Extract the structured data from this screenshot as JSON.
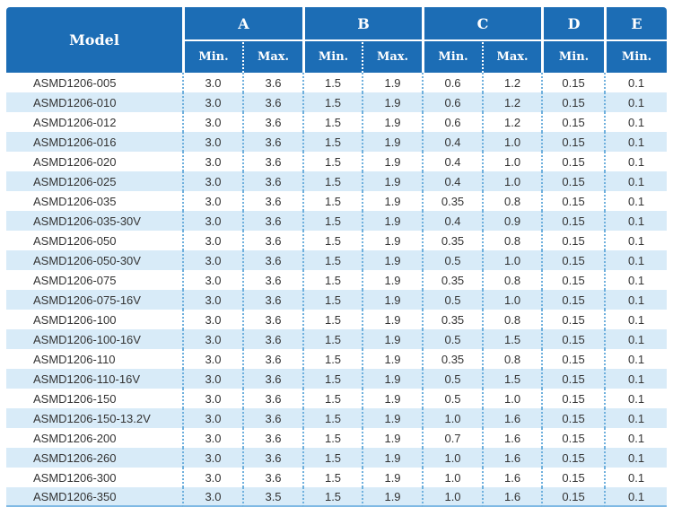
{
  "colors": {
    "header_bg": "#1c6db5",
    "header_text": "#ffffff",
    "row_alt_bg": "#d8ebf8",
    "row_bg": "#ffffff",
    "grid_dotted": "#6fb0dd",
    "bottom_border": "#7fb9e4",
    "body_text": "#333333"
  },
  "chart_data": {
    "type": "table",
    "title": "",
    "header": {
      "model": "Model",
      "groups": [
        {
          "label": "A",
          "span": 2
        },
        {
          "label": "B",
          "span": 2
        },
        {
          "label": "C",
          "span": 2
        },
        {
          "label": "D",
          "span": 1
        },
        {
          "label": "E",
          "span": 1
        }
      ],
      "sub_labels": [
        "Min.",
        "Max.",
        "Min.",
        "Max.",
        "Min.",
        "Max.",
        "Min.",
        "Min."
      ]
    },
    "columns": [
      "Model",
      "A Min.",
      "A Max.",
      "B Min.",
      "B Max.",
      "C Min.",
      "C Max.",
      "D Min.",
      "E Min."
    ],
    "rows": [
      [
        "ASMD1206-005",
        "3.0",
        "3.6",
        "1.5",
        "1.9",
        "0.6",
        "1.2",
        "0.15",
        "0.1"
      ],
      [
        "ASMD1206-010",
        "3.0",
        "3.6",
        "1.5",
        "1.9",
        "0.6",
        "1.2",
        "0.15",
        "0.1"
      ],
      [
        "ASMD1206-012",
        "3.0",
        "3.6",
        "1.5",
        "1.9",
        "0.6",
        "1.2",
        "0.15",
        "0.1"
      ],
      [
        "ASMD1206-016",
        "3.0",
        "3.6",
        "1.5",
        "1.9",
        "0.4",
        "1.0",
        "0.15",
        "0.1"
      ],
      [
        "ASMD1206-020",
        "3.0",
        "3.6",
        "1.5",
        "1.9",
        "0.4",
        "1.0",
        "0.15",
        "0.1"
      ],
      [
        "ASMD1206-025",
        "3.0",
        "3.6",
        "1.5",
        "1.9",
        "0.4",
        "1.0",
        "0.15",
        "0.1"
      ],
      [
        "ASMD1206-035",
        "3.0",
        "3.6",
        "1.5",
        "1.9",
        "0.35",
        "0.8",
        "0.15",
        "0.1"
      ],
      [
        "ASMD1206-035-30V",
        "3.0",
        "3.6",
        "1.5",
        "1.9",
        "0.4",
        "0.9",
        "0.15",
        "0.1"
      ],
      [
        "ASMD1206-050",
        "3.0",
        "3.6",
        "1.5",
        "1.9",
        "0.35",
        "0.8",
        "0.15",
        "0.1"
      ],
      [
        "ASMD1206-050-30V",
        "3.0",
        "3.6",
        "1.5",
        "1.9",
        "0.5",
        "1.0",
        "0.15",
        "0.1"
      ],
      [
        "ASMD1206-075",
        "3.0",
        "3.6",
        "1.5",
        "1.9",
        "0.35",
        "0.8",
        "0.15",
        "0.1"
      ],
      [
        "ASMD1206-075-16V",
        "3.0",
        "3.6",
        "1.5",
        "1.9",
        "0.5",
        "1.0",
        "0.15",
        "0.1"
      ],
      [
        "ASMD1206-100",
        "3.0",
        "3.6",
        "1.5",
        "1.9",
        "0.35",
        "0.8",
        "0.15",
        "0.1"
      ],
      [
        "ASMD1206-100-16V",
        "3.0",
        "3.6",
        "1.5",
        "1.9",
        "0.5",
        "1.5",
        "0.15",
        "0.1"
      ],
      [
        "ASMD1206-110",
        "3.0",
        "3.6",
        "1.5",
        "1.9",
        "0.35",
        "0.8",
        "0.15",
        "0.1"
      ],
      [
        "ASMD1206-110-16V",
        "3.0",
        "3.6",
        "1.5",
        "1.9",
        "0.5",
        "1.5",
        "0.15",
        "0.1"
      ],
      [
        "ASMD1206-150",
        "3.0",
        "3.6",
        "1.5",
        "1.9",
        "0.5",
        "1.0",
        "0.15",
        "0.1"
      ],
      [
        "ASMD1206-150-13.2V",
        "3.0",
        "3.6",
        "1.5",
        "1.9",
        "1.0",
        "1.6",
        "0.15",
        "0.1"
      ],
      [
        "ASMD1206-200",
        "3.0",
        "3.6",
        "1.5",
        "1.9",
        "0.7",
        "1.6",
        "0.15",
        "0.1"
      ],
      [
        "ASMD1206-260",
        "3.0",
        "3.6",
        "1.5",
        "1.9",
        "1.0",
        "1.6",
        "0.15",
        "0.1"
      ],
      [
        "ASMD1206-300",
        "3.0",
        "3.6",
        "1.5",
        "1.9",
        "1.0",
        "1.6",
        "0.15",
        "0.1"
      ],
      [
        "ASMD1206-350",
        "3.0",
        "3.5",
        "1.5",
        "1.9",
        "1.0",
        "1.6",
        "0.15",
        "0.1"
      ]
    ]
  }
}
